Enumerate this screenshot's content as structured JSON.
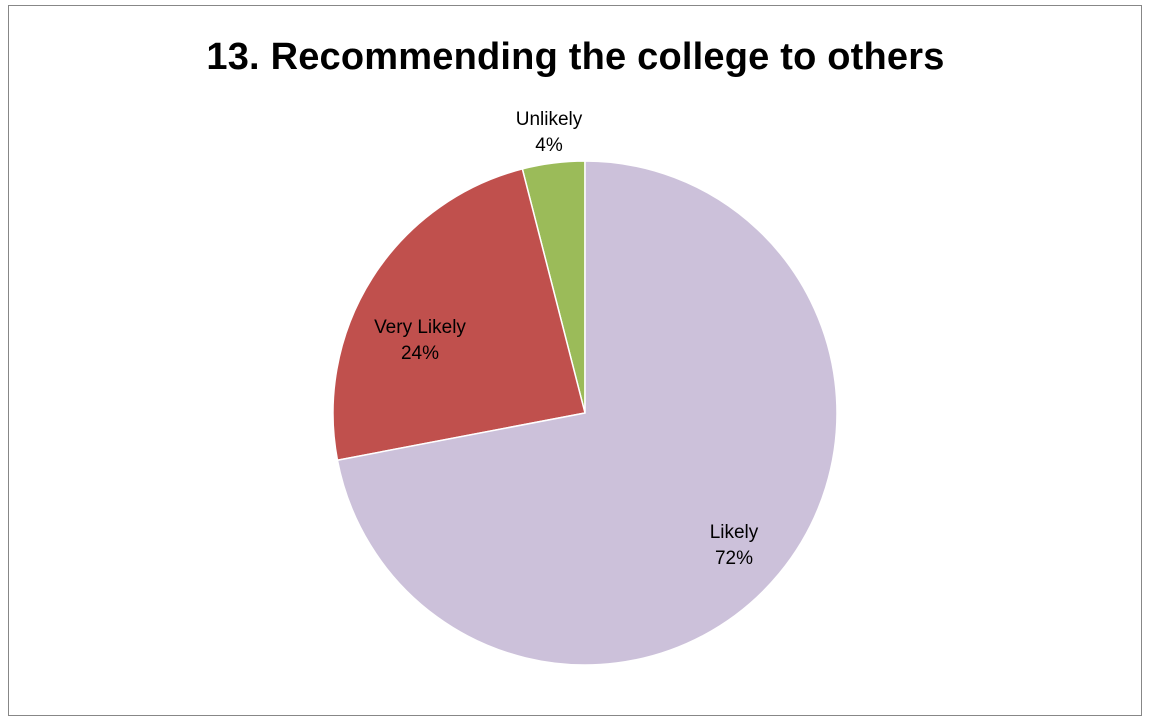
{
  "chart_data": {
    "type": "pie",
    "title": "13. Recommending the college to others",
    "slices": [
      {
        "label": "Unlikely",
        "value": 4,
        "value_label": "4%",
        "color": "#9BBB59"
      },
      {
        "label": "Very Likely",
        "value": 24,
        "value_label": "24%",
        "color": "#C0504D"
      },
      {
        "label": "Likely",
        "value": 72,
        "value_label": "72%",
        "color": "#CCC1DA"
      }
    ],
    "legend": "none",
    "data_labels": "category-and-percent"
  }
}
